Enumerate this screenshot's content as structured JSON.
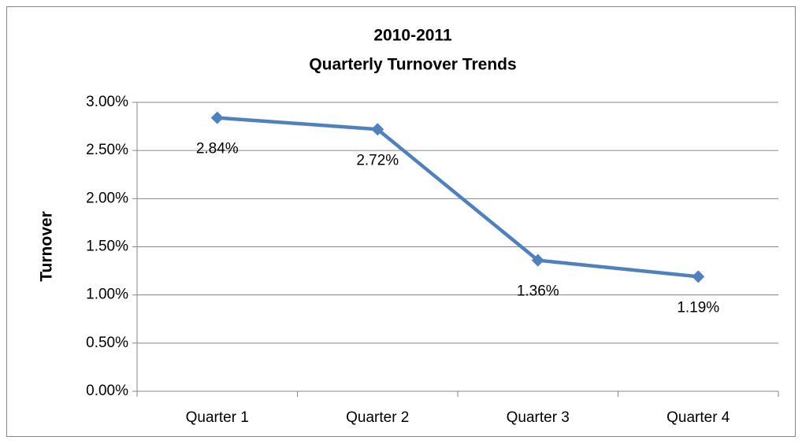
{
  "chart_data": {
    "type": "line",
    "title": "2010-2011",
    "subtitle": "Quarterly Turnover Trends",
    "y_label": "Turnover",
    "categories": [
      "Quarter 1",
      "Quarter 2",
      "Quarter 3",
      "Quarter 4"
    ],
    "series": [
      {
        "name": "Turnover",
        "color": "#4f81bd",
        "values": [
          2.84,
          2.72,
          1.36,
          1.19
        ],
        "value_labels": [
          "2.84%",
          "2.72%",
          "1.36%",
          "1.19%"
        ]
      }
    ],
    "ylim": [
      0,
      3
    ],
    "yticks": [
      {
        "value": 0,
        "label": "0.00%"
      },
      {
        "value": 0.5,
        "label": "0.50%"
      },
      {
        "value": 1,
        "label": "1.00%"
      },
      {
        "value": 1.5,
        "label": "1.50%"
      },
      {
        "value": 2,
        "label": "2.00%"
      },
      {
        "value": 2.5,
        "label": "2.50%"
      },
      {
        "value": 3,
        "label": "3.00%"
      }
    ],
    "grid": true
  }
}
